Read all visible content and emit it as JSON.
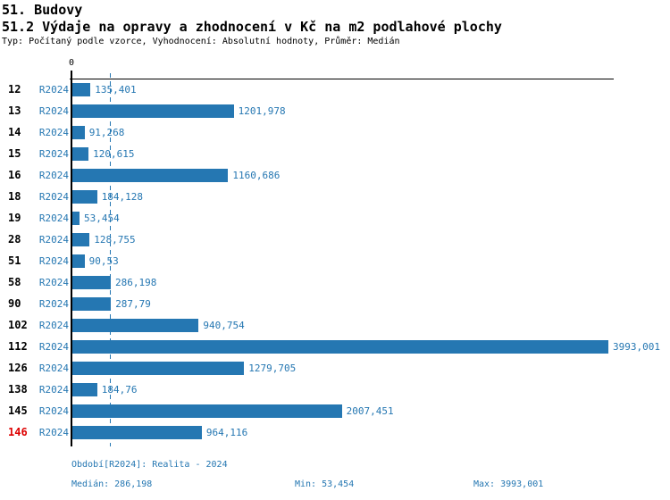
{
  "header": {
    "title": "51. Budovy",
    "subtitle": "51.2 Výdaje na opravy a zhodnocení v Kč na m2 podlahové plochy",
    "meta": "Typ: Počítaný podle vzorce, Vyhodnocení: Absolutní hodnoty, Průměr: Medián"
  },
  "chart_data": {
    "type": "bar",
    "orientation": "horizontal",
    "series_label": "R2024",
    "categories": [
      "12",
      "13",
      "14",
      "15",
      "16",
      "18",
      "19",
      "28",
      "51",
      "58",
      "90",
      "102",
      "112",
      "126",
      "138",
      "145",
      "146"
    ],
    "values": [
      135.401,
      1201.978,
      91.268,
      120.615,
      1160.686,
      184.128,
      53.454,
      128.755,
      90.53,
      286.198,
      287.79,
      940.754,
      3993.001,
      1279.705,
      184.76,
      2007.451,
      964.116
    ],
    "values_display": [
      "135,401",
      "1201,978",
      "91,268",
      "120,615",
      "1160,686",
      "184,128",
      "53,454",
      "128,755",
      "90,53",
      "286,198",
      "287,79",
      "940,754",
      "3993,001",
      "1279,705",
      "184,76",
      "2007,451",
      "964,116"
    ],
    "axis": {
      "zero_label": "0",
      "xlim": [
        0,
        3993.001
      ],
      "grid": false
    },
    "median_value": 286.198,
    "highlighted_category": "146",
    "legend_position": "none",
    "colors": {
      "bar": "#2577b2",
      "blue_text": "#2577b2",
      "highlight_text": "#dd0000",
      "axis": "#000000"
    }
  },
  "footer": {
    "period": "Období[R2024]: Realita - 2024",
    "median": "Medián: 286,198",
    "min": "Min: 53,454",
    "max": "Max: 3993,001"
  }
}
